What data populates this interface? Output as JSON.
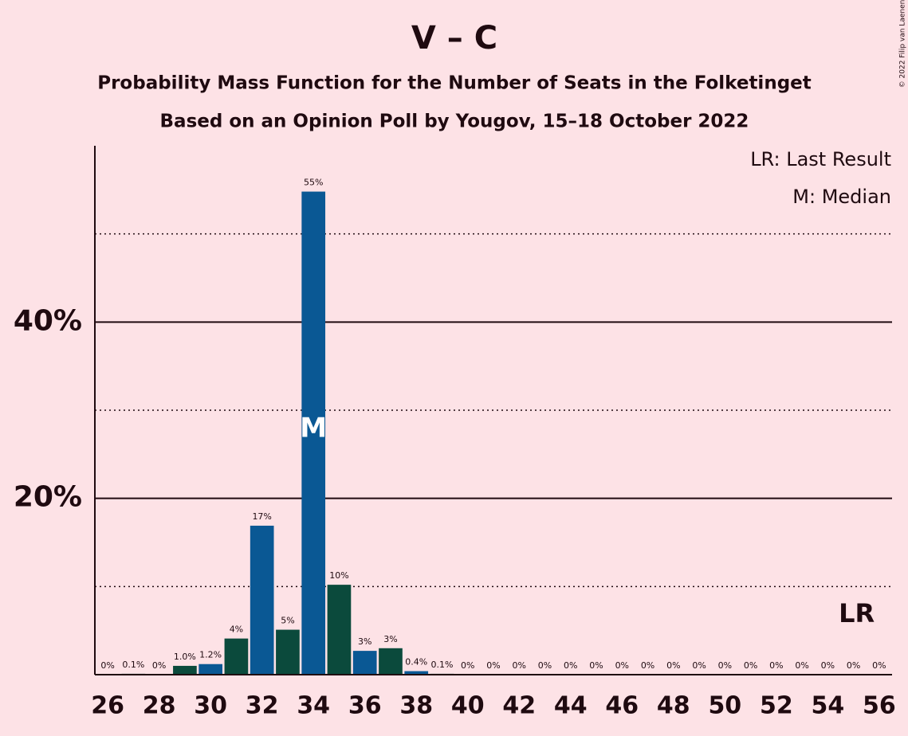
{
  "chart_data": {
    "type": "bar",
    "title": "V – C",
    "subtitle": [
      "Probability Mass Function for the Number of Seats in the Folketinget",
      "Based on an Opinion Poll by Yougov, 15–18 October 2022"
    ],
    "x": [
      26,
      27,
      28,
      29,
      30,
      31,
      32,
      33,
      34,
      35,
      36,
      37,
      38,
      39,
      40,
      41,
      42,
      43,
      44,
      45,
      46,
      47,
      48,
      49,
      50,
      51,
      52,
      53,
      54,
      55,
      56
    ],
    "values": [
      0,
      0.1,
      0,
      1.0,
      1.2,
      4.1,
      16.9,
      5.1,
      54.8,
      10.2,
      2.7,
      3.0,
      0.4,
      0.1,
      0,
      0,
      0,
      0,
      0,
      0,
      0,
      0,
      0,
      0,
      0,
      0,
      0,
      0,
      0,
      0,
      0
    ],
    "value_labels": [
      "0%",
      "0.1%",
      "0%",
      "1.0%",
      "1.2%",
      "4%",
      "17%",
      "5%",
      "55%",
      "10%",
      "3%",
      "3%",
      "0.4%",
      "0.1%",
      "0%",
      "0%",
      "0%",
      "0%",
      "0%",
      "0%",
      "0%",
      "0%",
      "0%",
      "0%",
      "0%",
      "0%",
      "0%",
      "0%",
      "0%",
      "0%",
      "0%"
    ],
    "colors": [
      "#0a5894",
      "#0b4a3c"
    ],
    "xlim": [
      25.5,
      56.5
    ],
    "xticks": [
      26,
      28,
      30,
      32,
      34,
      36,
      38,
      40,
      42,
      44,
      46,
      48,
      50,
      52,
      54,
      56
    ],
    "ylim": [
      0,
      60
    ],
    "yticks": [
      {
        "value": 20,
        "label": "20%"
      },
      {
        "value": 40,
        "label": "40%"
      }
    ],
    "minor_yticks": [
      10,
      30,
      50
    ],
    "legend": [
      "LR: Last Result",
      "M: Median"
    ],
    "median": {
      "x": 34,
      "label": "M"
    },
    "last_result": {
      "x": 55,
      "label": "LR"
    },
    "credit": "© 2022 Filip van Laenen"
  }
}
